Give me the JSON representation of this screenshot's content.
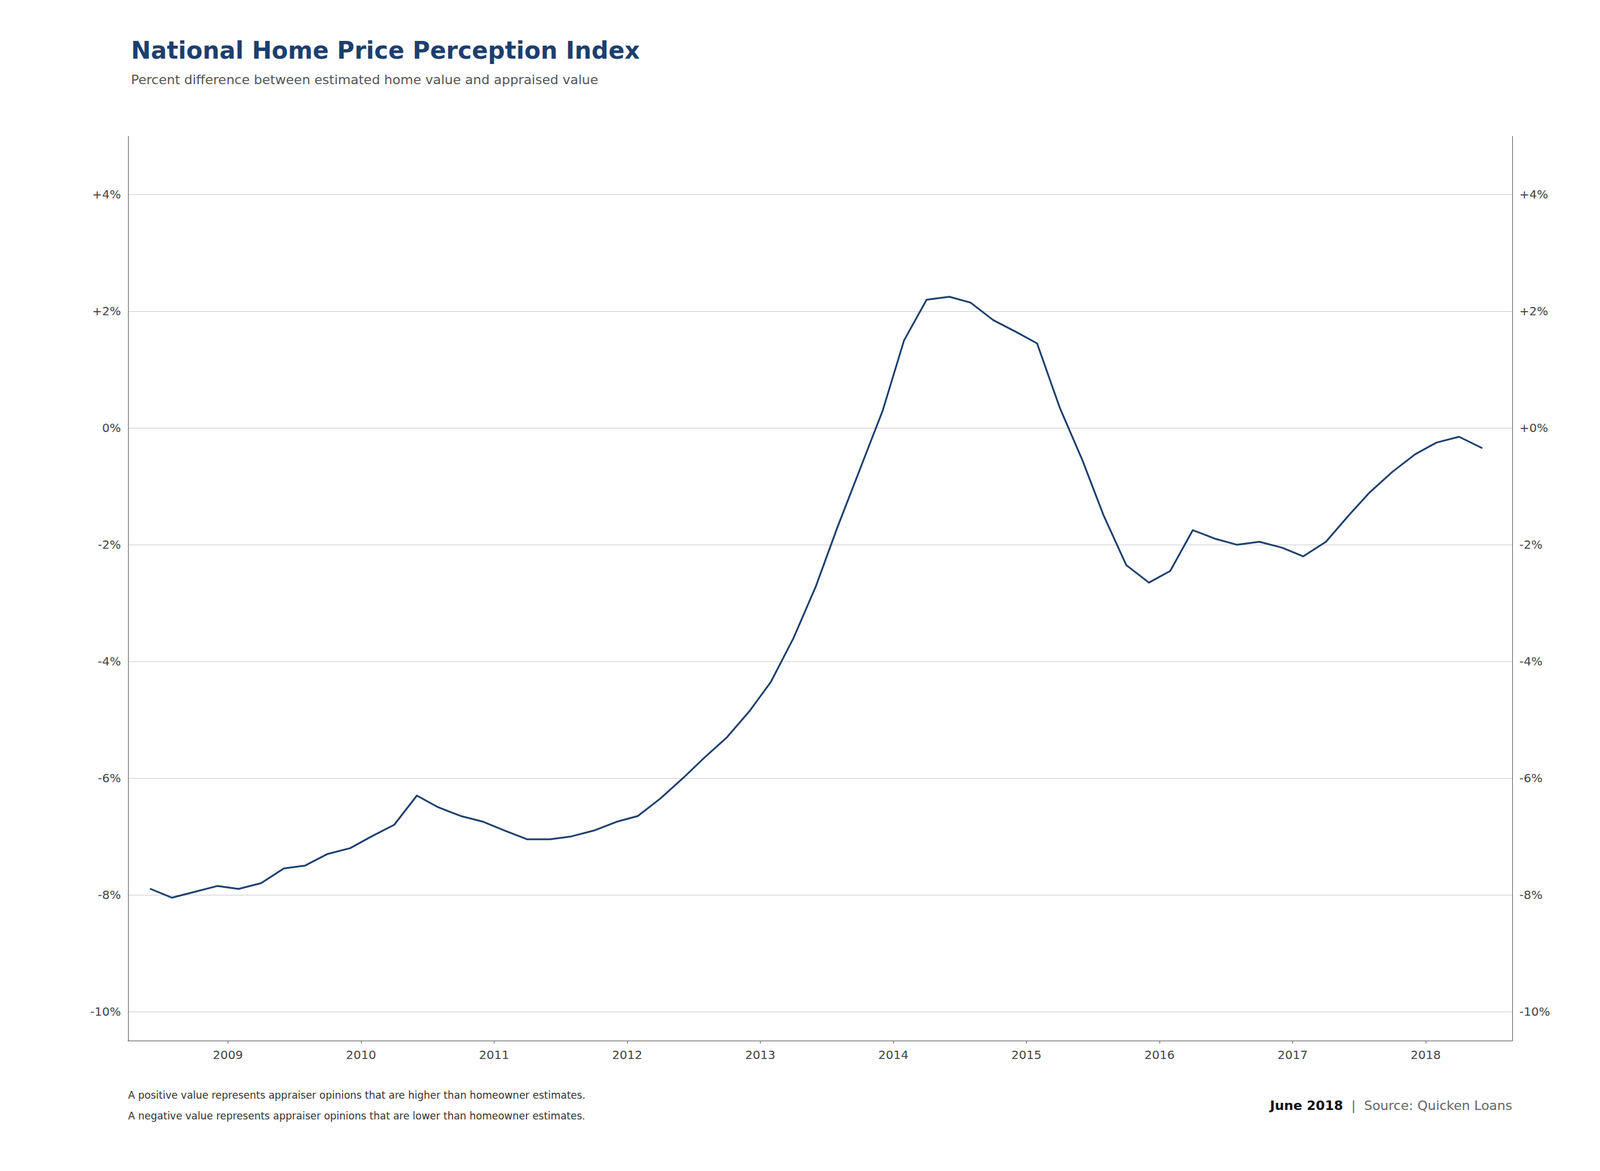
{
  "chart_data": {
    "type": "line",
    "title": "National Home Price Perception Index",
    "subtitle": "Percent difference between estimated home value and appraised value",
    "color": "#1c3f6e",
    "x": [
      2008.42,
      2008.58,
      2008.75,
      2008.92,
      2009.08,
      2009.25,
      2009.42,
      2009.58,
      2009.75,
      2009.92,
      2010.08,
      2010.25,
      2010.42,
      2010.58,
      2010.75,
      2010.92,
      2011.08,
      2011.25,
      2011.42,
      2011.58,
      2011.75,
      2011.92,
      2012.08,
      2012.25,
      2012.42,
      2012.58,
      2012.75,
      2012.92,
      2013.08,
      2013.25,
      2013.42,
      2013.58,
      2013.75,
      2013.92,
      2014.08,
      2014.25,
      2014.42,
      2014.58,
      2014.75,
      2014.92,
      2015.08,
      2015.25,
      2015.42,
      2015.58,
      2015.75,
      2015.92,
      2016.08,
      2016.25,
      2016.42,
      2016.58,
      2016.75,
      2016.92,
      2017.08,
      2017.25,
      2017.42,
      2017.58,
      2017.75,
      2017.92,
      2018.08,
      2018.25,
      2018.42
    ],
    "values": [
      -7.9,
      -8.05,
      -7.95,
      -7.85,
      -7.9,
      -7.8,
      -7.55,
      -7.5,
      -7.3,
      -7.2,
      -7.0,
      -6.8,
      -6.3,
      -6.5,
      -6.65,
      -6.75,
      -6.9,
      -7.05,
      -7.05,
      -7.0,
      -6.9,
      -6.75,
      -6.65,
      -6.35,
      -6.0,
      -5.65,
      -5.3,
      -4.85,
      -4.35,
      -3.6,
      -2.7,
      -1.7,
      -0.7,
      0.3,
      1.5,
      2.2,
      2.25,
      2.15,
      1.85,
      1.65,
      1.45,
      0.35,
      -0.55,
      -1.5,
      -2.35,
      -2.65,
      -2.45,
      -1.75,
      -1.9,
      -2.0,
      -1.95,
      -2.05,
      -2.2,
      -1.95,
      -1.5,
      -1.1,
      -0.75,
      -0.45,
      -0.25,
      -0.15,
      -0.34
    ],
    "xlim": [
      2008.25,
      2018.65
    ],
    "xticks": [
      2009,
      2010,
      2011,
      2012,
      2013,
      2014,
      2015,
      2016,
      2017,
      2018
    ],
    "ylim": [
      -10.5,
      5.0
    ],
    "yticks": [
      {
        "value": -10,
        "label": "-10%"
      },
      {
        "value": -8,
        "label": "-8%"
      },
      {
        "value": -6,
        "label": "-6%"
      },
      {
        "value": -4,
        "label": "-4%"
      },
      {
        "value": -2,
        "label": "-2%"
      },
      {
        "value": 0,
        "label": "0%"
      },
      {
        "value": 2,
        "label": "+2%"
      },
      {
        "value": 4,
        "label": "+4%"
      }
    ],
    "y2lim": [
      -10.5,
      5.0
    ],
    "y2ticks": [
      {
        "value": -10,
        "label": "-10%"
      },
      {
        "value": -8,
        "label": "-8%"
      },
      {
        "value": -6,
        "label": "-6%"
      },
      {
        "value": -4,
        "label": "-4%"
      },
      {
        "value": -2,
        "label": "-2%"
      },
      {
        "value": 0,
        "label": "+0%"
      },
      {
        "value": 2,
        "label": "+2%"
      },
      {
        "value": 4,
        "label": "+4%"
      }
    ],
    "grid": true,
    "annotations": [
      "A positive value represents appraiser opinions that are higher than homeowner estimates.",
      "A negative value represents appraiser opinions that are lower than homeowner estimates.",
      "June 2018",
      "|  Source: Quicken Loans"
    ]
  }
}
